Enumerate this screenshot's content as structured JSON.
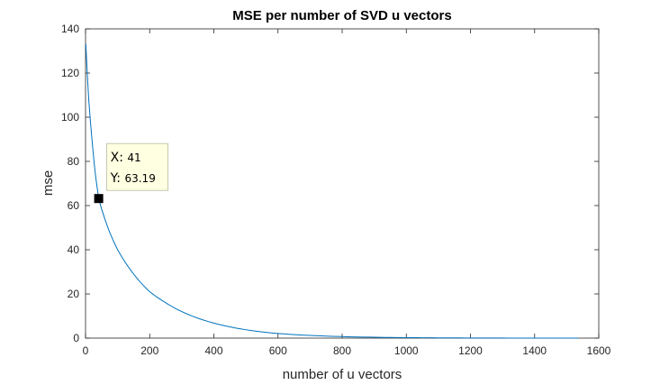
{
  "chart_data": {
    "type": "line",
    "title": "MSE per number of SVD u vectors",
    "xlabel": "number of u vectors",
    "ylabel": "mse",
    "xlim": [
      0,
      1600
    ],
    "ylim": [
      0,
      140
    ],
    "xticks": [
      0,
      200,
      400,
      600,
      800,
      1000,
      1200,
      1400,
      1600
    ],
    "yticks": [
      0,
      20,
      40,
      60,
      80,
      100,
      120,
      140
    ],
    "grid": false,
    "line_color": "#0072bd",
    "series": [
      {
        "x": [
          1,
          5,
          10,
          20,
          30,
          41,
          50,
          75,
          100,
          150,
          200,
          250,
          300,
          400,
          500,
          600,
          700,
          800,
          900,
          1000,
          1100,
          1200,
          1300,
          1400,
          1536
        ],
        "y": [
          133,
          121,
          108,
          90,
          75,
          63.19,
          58.5,
          48,
          40,
          29,
          21,
          16,
          12,
          6.8,
          3.8,
          2.1,
          1.2,
          0.7,
          0.4,
          0.22,
          0.12,
          0.06,
          0.03,
          0.01,
          0
        ]
      }
    ],
    "datatip": {
      "x": 41,
      "y": 63.19,
      "x_label": "X",
      "y_label": "Y",
      "x_text": "41",
      "y_text": "63.19"
    }
  }
}
